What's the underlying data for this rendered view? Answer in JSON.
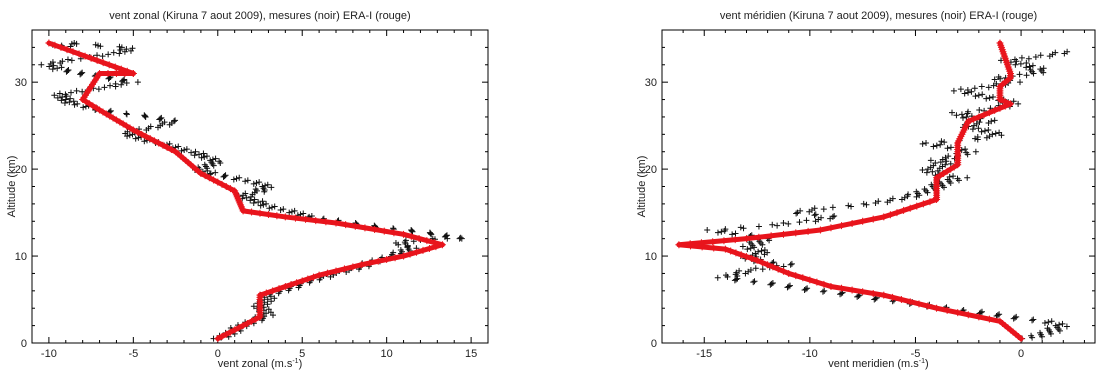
{
  "chart_data": [
    {
      "type": "scatter",
      "title": "vent zonal (Kiruna 7 aout 2009), mesures (noir) ERA-I (rouge)",
      "xlabel": "vent zonal (m.s",
      "xlabel_sup": "-1",
      "xlabel_end": ")",
      "ylabel": "Altitude (km)",
      "xlim": [
        -11,
        16
      ],
      "ylim": [
        0,
        36
      ],
      "xticks": [
        -10,
        -5,
        0,
        5,
        10,
        15
      ],
      "yticks": [
        0,
        10,
        20,
        30
      ],
      "xticklabels": [
        "-10",
        "-5",
        "0",
        "5",
        "10",
        "15"
      ],
      "yticklabels": [
        "0",
        "10",
        "20",
        "30"
      ],
      "grid": false,
      "legend": "none",
      "colors": {
        "measurements": "#111111",
        "era_interim": "#e8141c"
      },
      "series": [
        {
          "x": [
            0.2,
            1.0,
            2.0,
            3.0,
            2.5,
            2.8,
            3.0,
            4.5,
            6.0,
            8.0,
            9.5,
            11.0,
            11.5,
            10.8,
            11.0,
            11.5,
            13.0,
            14.5,
            13.0,
            11.0,
            9.0,
            7.0,
            5.5,
            4.5,
            3.5,
            2.5,
            2.0,
            1.5,
            2.5,
            3.0,
            2.0,
            1.0,
            -0.5,
            -1.0,
            -0.5,
            0.0,
            -1.0,
            -1.5,
            -2.5,
            -3.5,
            -4.5,
            -5.5,
            -4.5,
            -3.5,
            -2.5,
            -4.0,
            -6.0,
            -7.5,
            -8.5,
            -9.0,
            -9.5,
            -8.0,
            -6.5,
            -5.0,
            -6.5,
            -8.0,
            -9.5,
            -10.0,
            -9.0,
            -7.0,
            -5.5,
            -5.5,
            -7.0,
            -8.5,
            -9.5,
            -9.0
          ],
          "y": [
            0.5,
            1.5,
            2.5,
            3.2,
            4.0,
            4.8,
            5.5,
            6.5,
            7.5,
            8.5,
            9.5,
            10.5,
            11.0,
            11.2,
            11.5,
            11.8,
            12.0,
            12.0,
            12.5,
            13.0,
            13.5,
            14.0,
            14.5,
            15.0,
            15.5,
            16.0,
            16.5,
            17.0,
            17.5,
            18.0,
            18.5,
            19.0,
            19.5,
            20.0,
            20.5,
            21.0,
            21.5,
            22.0,
            22.5,
            23.0,
            23.5,
            24.0,
            24.5,
            25.0,
            25.5,
            26.0,
            26.5,
            27.0,
            27.5,
            28.0,
            28.5,
            29.0,
            29.5,
            30.0,
            30.5,
            31.0,
            31.5,
            32.0,
            32.5,
            33.0,
            33.5,
            34.0,
            34.2,
            34.5,
            34.3,
            34.0
          ]
        },
        {
          "x": [
            0,
            2.5,
            2.5,
            4,
            6,
            8.5,
            11,
            13.3,
            11,
            7,
            4,
            1.5,
            1,
            -1,
            -2.5,
            -5,
            -7,
            -8,
            -7,
            -5,
            -5,
            -10
          ],
          "y": [
            0.5,
            3,
            5.5,
            6.5,
            7.8,
            9,
            10,
            11.3,
            12.5,
            13.8,
            14.5,
            15.2,
            17.5,
            19.5,
            22,
            24.5,
            26.8,
            28,
            31,
            31,
            31,
            34.5
          ]
        }
      ]
    },
    {
      "type": "scatter",
      "title": "vent méridien (Kiruna 7 aout 2009), mesures (noir) ERA-I (rouge)",
      "xlabel": "vent meridien (m.s",
      "xlabel_sup": "-1",
      "xlabel_end": ")",
      "ylabel": "Altitude (km)",
      "xlim": [
        -17,
        3.5
      ],
      "ylim": [
        0,
        36
      ],
      "xticks": [
        -15,
        -10,
        -5,
        0
      ],
      "yticks": [
        0,
        10,
        20,
        30
      ],
      "xticklabels": [
        "-15",
        "-10",
        "-5",
        "0"
      ],
      "yticklabels": [
        "0",
        "10",
        "20",
        "30"
      ],
      "grid": false,
      "legend": "none",
      "colors": {
        "measurements": "#111111",
        "era_interim": "#e8141c"
      },
      "series": [
        {
          "x": [
            0.5,
            1.5,
            2.0,
            1.0,
            -0.5,
            -2.0,
            -3.5,
            -5.0,
            -6.5,
            -8.0,
            -9.5,
            -11.0,
            -12.5,
            -14.0,
            -13.5,
            -12.5,
            -11.0,
            -12.5,
            -13.0,
            -12.0,
            -13.0,
            -12.5,
            -12.0,
            -13.5,
            -14.5,
            -12.0,
            -10.0,
            -9.0,
            -10.5,
            -9.5,
            -7.0,
            -6.0,
            -5.0,
            -4.5,
            -4.0,
            -3.5,
            -3.0,
            -4.0,
            -4.5,
            -3.5,
            -4.0,
            -3.0,
            -2.5,
            -3.5,
            -4.5,
            -2.0,
            -1.0,
            -2.0,
            -2.5,
            -1.5,
            -2.5,
            -3.0,
            -1.0,
            -0.5,
            -1.0,
            -2.0,
            -3.0,
            -1.5,
            -0.5,
            -1.0,
            0.5,
            1.0,
            0.0,
            -0.5,
            1.0,
            2.0
          ],
          "y": [
            0.5,
            1.5,
            2.0,
            2.5,
            3.0,
            3.5,
            4.0,
            4.5,
            5.0,
            5.5,
            6.0,
            6.5,
            7.0,
            7.5,
            8.0,
            8.5,
            9.0,
            9.5,
            10.0,
            10.5,
            11.0,
            11.5,
            12.0,
            12.5,
            13.0,
            13.5,
            14.0,
            14.5,
            15.0,
            15.5,
            16.0,
            16.5,
            17.0,
            17.5,
            18.0,
            18.5,
            19.0,
            19.5,
            20.0,
            20.5,
            21.0,
            21.5,
            22.0,
            22.5,
            23.0,
            23.5,
            24.0,
            24.5,
            25.0,
            25.5,
            26.0,
            26.5,
            27.0,
            27.5,
            28.0,
            28.5,
            29.0,
            29.5,
            30.0,
            30.5,
            31.0,
            31.5,
            32.0,
            32.5,
            33.0,
            33.5
          ]
        },
        {
          "x": [
            0.0,
            -1.0,
            -4.0,
            -6.5,
            -9.0,
            -11.0,
            -12.5,
            -14.0,
            -16.2,
            -13.0,
            -9.5,
            -6.5,
            -4.0,
            -4.0,
            -3.0,
            -3.0,
            -2.5,
            -0.5,
            -1.0,
            -1.0,
            -0.5,
            -0.5,
            -1.0
          ],
          "y": [
            0.5,
            2.5,
            4.0,
            5.5,
            6.5,
            8.0,
            9.5,
            10.8,
            11.3,
            12.0,
            13.0,
            14.5,
            16.5,
            19.0,
            20.5,
            23.0,
            25.5,
            27.5,
            28.0,
            29.5,
            30.5,
            31.0,
            34.5
          ]
        }
      ]
    }
  ]
}
